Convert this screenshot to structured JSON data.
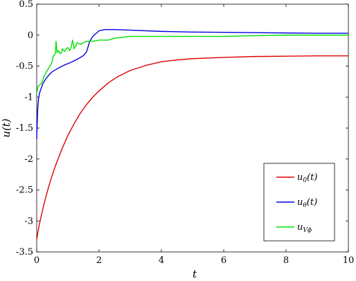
{
  "chart_data": {
    "type": "line",
    "title": "",
    "xlabel": "t",
    "ylabel": "u(t)",
    "xlim": [
      0,
      10
    ],
    "ylim": [
      -3.5,
      0.5
    ],
    "xticks": [
      0,
      2,
      4,
      6,
      8,
      10
    ],
    "yticks": [
      -3.5,
      -3,
      -2.5,
      -2,
      -1.5,
      -1,
      -0.5,
      0,
      0.5
    ],
    "xtick_labels": [
      "0",
      "2",
      "4",
      "6",
      "8",
      "10"
    ],
    "ytick_labels": [
      "-3.5",
      "-3",
      "-2.5",
      "-2",
      "-1.5",
      "-1",
      "-0.5",
      "0",
      "0.5"
    ],
    "grid": false,
    "legend_position": "bottom-right",
    "series": [
      {
        "name": "u_0(t)",
        "color": "#e00000",
        "x": [
          0,
          0.05,
          0.1,
          0.2,
          0.3,
          0.4,
          0.5,
          0.6,
          0.8,
          1.0,
          1.2,
          1.4,
          1.6,
          1.8,
          2.0,
          2.3,
          2.6,
          3.0,
          3.5,
          4.0,
          4.5,
          5.0,
          6.0,
          7.0,
          8.0,
          9.0,
          10.0
        ],
        "y": [
          -3.3,
          -3.15,
          -3.02,
          -2.8,
          -2.6,
          -2.42,
          -2.26,
          -2.11,
          -1.85,
          -1.62,
          -1.43,
          -1.26,
          -1.12,
          -1.0,
          -0.9,
          -0.77,
          -0.67,
          -0.57,
          -0.49,
          -0.43,
          -0.4,
          -0.38,
          -0.36,
          -0.345,
          -0.34,
          -0.335,
          -0.335
        ]
      },
      {
        "name": "u_θ(t)",
        "color": "#0000e0",
        "x": [
          0,
          0.03,
          0.06,
          0.1,
          0.15,
          0.2,
          0.3,
          0.4,
          0.5,
          0.7,
          0.9,
          1.1,
          1.3,
          1.5,
          1.6,
          1.7,
          1.8,
          2.0,
          2.2,
          2.5,
          3.0,
          4.0,
          5.0,
          6.0,
          7.0,
          8.0,
          9.0,
          10.0
        ],
        "y": [
          -1.68,
          -1.2,
          -1.02,
          -0.92,
          -0.85,
          -0.78,
          -0.7,
          -0.64,
          -0.59,
          -0.53,
          -0.48,
          -0.44,
          -0.39,
          -0.33,
          -0.27,
          -0.1,
          -0.02,
          0.07,
          0.09,
          0.09,
          0.08,
          0.06,
          0.05,
          0.045,
          0.04,
          0.035,
          0.03,
          0.03
        ]
      },
      {
        "name": "u_{V_ϕ}",
        "color": "#00e000",
        "x": [
          0,
          0.03,
          0.06,
          0.1,
          0.15,
          0.2,
          0.25,
          0.3,
          0.4,
          0.45,
          0.5,
          0.52,
          0.55,
          0.6,
          0.62,
          0.65,
          0.7,
          0.75,
          0.8,
          0.82,
          0.85,
          0.9,
          0.95,
          1.0,
          1.05,
          1.1,
          1.15,
          1.2,
          1.25,
          1.3,
          1.4,
          1.5,
          1.6,
          1.8,
          2.0,
          2.3,
          2.5,
          3.0,
          4.0,
          6.0,
          6.8,
          8.0,
          10.0
        ],
        "y": [
          -0.95,
          -0.85,
          -0.82,
          -0.8,
          -0.78,
          -0.72,
          -0.65,
          -0.6,
          -0.52,
          -0.48,
          -0.42,
          -0.35,
          -0.33,
          -0.3,
          -0.1,
          -0.28,
          -0.25,
          -0.3,
          -0.28,
          -0.22,
          -0.24,
          -0.26,
          -0.22,
          -0.2,
          -0.25,
          -0.2,
          -0.08,
          -0.22,
          -0.18,
          -0.12,
          -0.15,
          -0.12,
          -0.1,
          -0.1,
          -0.08,
          -0.08,
          -0.05,
          -0.02,
          -0.02,
          -0.02,
          -0.01,
          0.0,
          0.0
        ]
      }
    ]
  },
  "legend": {
    "items": [
      {
        "prefix": "u",
        "sub": "0",
        "suffix": "(t)",
        "color": "#e00000"
      },
      {
        "prefix": "u",
        "sub": "θ",
        "suffix": "(t)",
        "color": "#0000e0"
      },
      {
        "prefix": "u",
        "sub": "Vϕ",
        "suffix": "",
        "color": "#00e000"
      }
    ]
  }
}
